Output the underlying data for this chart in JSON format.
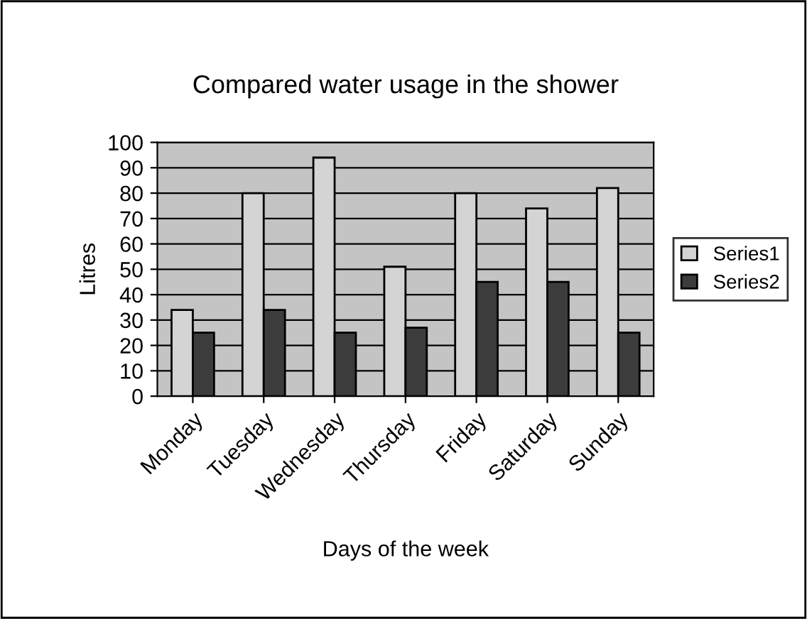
{
  "chart_data": {
    "type": "bar",
    "title": "Compared water usage in the shower",
    "xlabel": "Days of the week",
    "ylabel": "Litres",
    "categories": [
      "Monday",
      "Tuesday",
      "Wednesday",
      "Thursday",
      "Friday",
      "Saturday",
      "Sunday"
    ],
    "series": [
      {
        "name": "Series1",
        "color": "#d4d4d4",
        "values": [
          34,
          80,
          94,
          51,
          80,
          74,
          82
        ]
      },
      {
        "name": "Series2",
        "color": "#3c3c3c",
        "values": [
          25,
          34,
          25,
          27,
          45,
          45,
          25
        ]
      }
    ],
    "ylim": [
      0,
      100
    ],
    "yticks": [
      0,
      10,
      20,
      30,
      40,
      50,
      60,
      70,
      80,
      90,
      100
    ],
    "grid": "y",
    "legend": "right"
  }
}
